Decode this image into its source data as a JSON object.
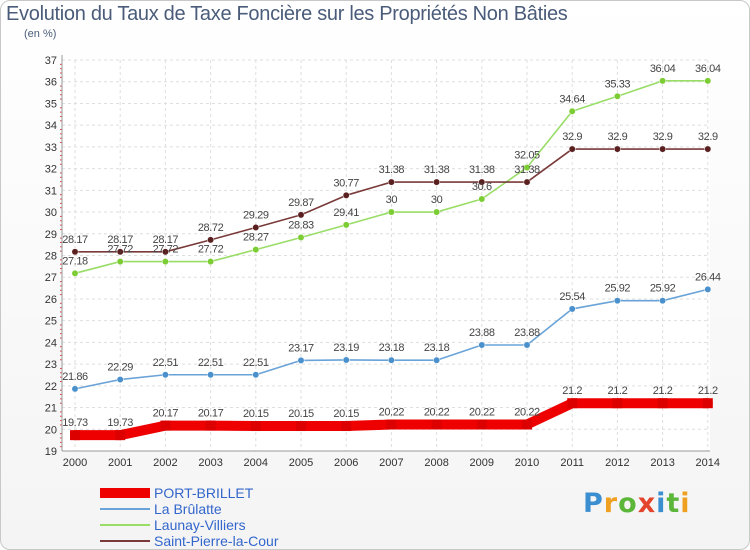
{
  "title": "Evolution du Taux de Taxe Foncière sur les Propriétés Non Bâties",
  "unit_label": "(en %)",
  "logo_text": "Proxiti",
  "chart_data": {
    "type": "line",
    "title": "Evolution du Taux de Taxe Foncière sur les Propriétés Non Bâties",
    "ylabel": "(en %)",
    "x": [
      "2000",
      "2001",
      "2002",
      "2003",
      "2004",
      "2005",
      "2006",
      "2007",
      "2008",
      "2009",
      "2010",
      "2011",
      "2012",
      "2013",
      "2014"
    ],
    "ylim": [
      19,
      37
    ],
    "yticks": [
      19,
      20,
      21,
      22,
      23,
      24,
      25,
      26,
      27,
      28,
      29,
      30,
      31,
      32,
      33,
      34,
      35,
      36,
      37
    ],
    "grid": true,
    "legend_position": "bottom-left",
    "series": [
      {
        "name": "PORT-BRILLET",
        "color": "#ee0000",
        "values": [
          19.73,
          19.73,
          20.17,
          20.17,
          20.15,
          20.15,
          20.15,
          20.22,
          20.22,
          20.22,
          20.22,
          21.2,
          21.2,
          21.2,
          21.2
        ],
        "labels": [
          "19.73",
          "19.73",
          "20.17",
          "20.17",
          "20.15",
          "20.15",
          "20.15",
          "20.22",
          "20.22",
          "20.22",
          "20.22",
          "21.2",
          "21.2",
          "21.2",
          "21.2"
        ]
      },
      {
        "name": "La Brûlatte",
        "color": "#6aa3d8",
        "values": [
          21.86,
          22.29,
          22.51,
          22.51,
          22.51,
          23.17,
          23.19,
          23.18,
          23.18,
          23.88,
          23.88,
          25.54,
          25.92,
          25.92,
          26.44
        ],
        "labels": [
          "21.86",
          "22.29",
          "22.51",
          "22.51",
          "22.51",
          "23.17",
          "23.19",
          "23.18",
          "23.18",
          "23.88",
          "23.88",
          "25.54",
          "25.92",
          "25.92",
          "26.44"
        ]
      },
      {
        "name": "Launay-Villiers",
        "color": "#99dd66",
        "values": [
          27.18,
          27.72,
          27.72,
          27.72,
          28.27,
          28.83,
          29.41,
          30,
          30,
          30.6,
          32.05,
          34.64,
          35.33,
          36.04,
          36.04
        ],
        "labels": [
          "27.18",
          "27.72",
          "27.72",
          "27.72",
          "28.27",
          "28.83",
          "29.41",
          "30",
          "30",
          "30.6",
          "32.05",
          "34.64",
          "35.33",
          "36.04",
          "36.04"
        ]
      },
      {
        "name": "Saint-Pierre-la-Cour",
        "color": "#7a3a3a",
        "values": [
          28.17,
          28.17,
          28.17,
          28.72,
          29.29,
          29.87,
          30.77,
          31.38,
          31.38,
          31.38,
          31.38,
          32.9,
          32.9,
          32.9,
          32.9
        ],
        "labels": [
          "28.17",
          "28.17",
          "28.17",
          "28.72",
          "29.29",
          "29.87",
          "30.77",
          "31.38",
          "31.38",
          "31.38",
          "31.38",
          "32.9",
          "32.9",
          "32.9",
          "32.9"
        ]
      }
    ]
  }
}
